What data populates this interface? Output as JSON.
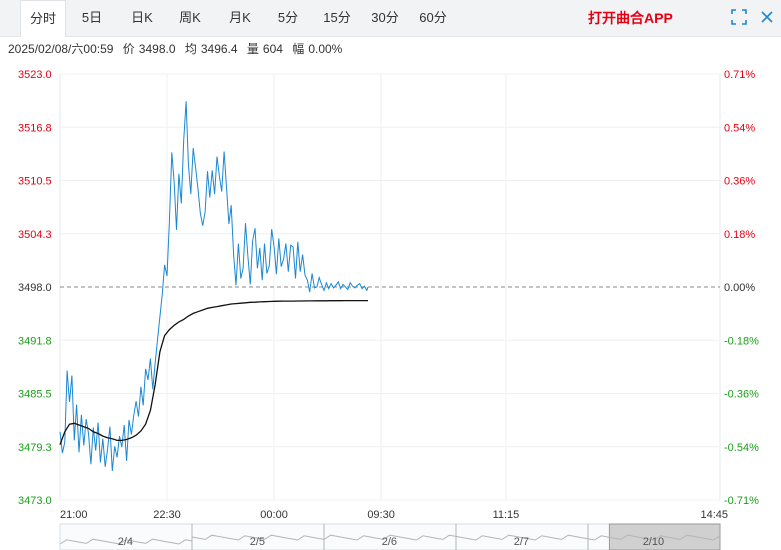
{
  "tabs": [
    {
      "label": "分时",
      "active": true
    },
    {
      "label": "5日"
    },
    {
      "label": "日K"
    },
    {
      "label": "周K"
    },
    {
      "label": "月K"
    },
    {
      "label": "5分"
    },
    {
      "label": "15分"
    },
    {
      "label": "30分"
    },
    {
      "label": "60分"
    }
  ],
  "app_link": "打开曲合APP",
  "info": {
    "datetime": "2025/02/08/六00:59",
    "price_label": "价",
    "price": "3498.0",
    "avg_label": "均",
    "avg": "3496.4",
    "vol_label": "量",
    "vol": "604",
    "chg_label": "幅",
    "chg": "0.00%"
  },
  "colors": {
    "up": "#e60012",
    "down": "#1aa01a",
    "price_line": "#1c87d2",
    "avg_line": "#111111",
    "ref_line": "#888888"
  },
  "chart_data": {
    "type": "line",
    "ylim": [
      3473.0,
      3523.0
    ],
    "ref_price": 3498.0,
    "y_ticks": [
      {
        "price": "3523.0",
        "pct": "0.71%",
        "dir": "up"
      },
      {
        "price": "3516.8",
        "pct": "0.54%",
        "dir": "up"
      },
      {
        "price": "3510.5",
        "pct": "0.36%",
        "dir": "up"
      },
      {
        "price": "3504.3",
        "pct": "0.18%",
        "dir": "up"
      },
      {
        "price": "3498.0",
        "pct": "0.00%",
        "dir": "flat"
      },
      {
        "price": "3491.8",
        "pct": "-0.18%",
        "dir": "down"
      },
      {
        "price": "3485.5",
        "pct": "-0.36%",
        "dir": "down"
      },
      {
        "price": "3479.3",
        "pct": "-0.54%",
        "dir": "down"
      },
      {
        "price": "3473.0",
        "pct": "-0.71%",
        "dir": "down"
      }
    ],
    "x_ticks": [
      "21:00",
      "22:30",
      "00:00",
      "09:30",
      "11:15",
      "14:45"
    ],
    "x_tick_minutes": [
      0,
      90,
      180,
      270,
      375,
      555
    ],
    "x_total_minutes": 555,
    "series": [
      {
        "key": "price",
        "x": [
          0,
          2,
          4,
          6,
          8,
          10,
          12,
          14,
          16,
          18,
          20,
          22,
          24,
          26,
          28,
          30,
          32,
          34,
          36,
          38,
          40,
          42,
          44,
          46,
          48,
          50,
          52,
          54,
          56,
          58,
          60,
          62,
          64,
          66,
          68,
          70,
          72,
          74,
          76,
          78,
          80,
          82,
          84,
          86,
          88,
          90,
          92,
          94,
          96,
          98,
          100,
          102,
          104,
          106,
          108,
          110,
          112,
          114,
          116,
          118,
          120,
          122,
          124,
          126,
          128,
          130,
          132,
          134,
          136,
          138,
          140,
          142,
          144,
          146,
          148,
          150,
          152,
          154,
          156,
          158,
          160,
          162,
          164,
          166,
          168,
          170,
          172,
          174,
          176,
          178,
          180,
          182,
          184,
          186,
          188,
          190,
          192,
          194,
          196,
          198,
          200,
          202,
          204,
          206,
          208,
          210,
          212,
          214,
          216,
          218,
          220,
          222,
          224,
          226,
          228,
          230,
          232,
          234,
          236,
          238,
          240,
          242,
          244,
          246,
          248,
          250,
          252,
          254,
          256,
          258,
          259
        ],
        "values": [
          3481.0,
          3478.5,
          3479.8,
          3488.2,
          3484.5,
          3487.6,
          3480.0,
          3484.2,
          3478.6,
          3483.0,
          3479.4,
          3482.5,
          3480.8,
          3477.2,
          3481.5,
          3478.8,
          3482.1,
          3477.4,
          3480.2,
          3476.9,
          3479.0,
          3481.6,
          3476.4,
          3479.3,
          3478.0,
          3480.5,
          3479.2,
          3481.8,
          3477.6,
          3482.4,
          3480.7,
          3482.9,
          3484.6,
          3482.8,
          3486.3,
          3484.1,
          3488.4,
          3487.1,
          3489.6,
          3486.0,
          3489.0,
          3491.8,
          3494.5,
          3497.2,
          3500.6,
          3499.3,
          3505.7,
          3513.8,
          3510.2,
          3504.7,
          3511.3,
          3507.8,
          3515.2,
          3519.8,
          3512.4,
          3508.9,
          3514.3,
          3512.0,
          3509.6,
          3506.7,
          3505.2,
          3506.8,
          3511.6,
          3508.5,
          3511.7,
          3508.9,
          3513.3,
          3511.0,
          3509.2,
          3513.9,
          3509.7,
          3505.4,
          3507.6,
          3501.8,
          3498.2,
          3503.1,
          3499.0,
          3500.2,
          3505.5,
          3501.6,
          3498.3,
          3503.4,
          3504.9,
          3500.2,
          3502.6,
          3498.8,
          3503.1,
          3499.6,
          3500.5,
          3504.8,
          3502.7,
          3499.5,
          3503.7,
          3500.4,
          3501.3,
          3503.1,
          3499.8,
          3502.9,
          3502.7,
          3499.0,
          3503.3,
          3499.8,
          3501.8,
          3499.4,
          3498.8,
          3497.4,
          3499.6,
          3497.9,
          3498.0,
          3499.1,
          3498.3,
          3497.6,
          3498.5,
          3497.8,
          3498.4,
          3497.9,
          3498.2,
          3498.6,
          3497.8,
          3498.3,
          3498.0,
          3497.7,
          3498.5,
          3498.1,
          3497.9,
          3498.2,
          3498.4,
          3497.8,
          3498.1,
          3497.6,
          3498.0
        ]
      },
      {
        "key": "avg",
        "x": [
          0,
          4,
          8,
          12,
          16,
          20,
          24,
          28,
          32,
          36,
          40,
          44,
          48,
          52,
          56,
          60,
          64,
          68,
          72,
          76,
          80,
          84,
          88,
          92,
          96,
          100,
          104,
          108,
          112,
          116,
          120,
          124,
          128,
          132,
          136,
          140,
          144,
          148,
          152,
          156,
          160,
          164,
          168,
          172,
          176,
          180,
          184,
          188,
          192,
          196,
          200,
          204,
          208,
          212,
          216,
          220,
          224,
          228,
          232,
          236,
          240,
          244,
          248,
          252,
          256,
          259
        ],
        "values": [
          3479.5,
          3481.0,
          3481.9,
          3482.0,
          3481.8,
          3481.6,
          3481.4,
          3481.0,
          3480.8,
          3480.5,
          3480.3,
          3480.2,
          3480.0,
          3480.0,
          3480.1,
          3480.3,
          3480.6,
          3481.1,
          3481.9,
          3483.5,
          3486.5,
          3490.4,
          3492.3,
          3493.0,
          3493.5,
          3493.9,
          3494.2,
          3494.6,
          3494.9,
          3495.1,
          3495.3,
          3495.5,
          3495.6,
          3495.7,
          3495.8,
          3495.9,
          3496.0,
          3496.05,
          3496.1,
          3496.15,
          3496.2,
          3496.22,
          3496.25,
          3496.28,
          3496.3,
          3496.32,
          3496.33,
          3496.34,
          3496.35,
          3496.35,
          3496.36,
          3496.36,
          3496.37,
          3496.37,
          3496.38,
          3496.38,
          3496.38,
          3496.39,
          3496.39,
          3496.39,
          3496.4,
          3496.4,
          3496.4,
          3496.4,
          3496.4,
          3496.4
        ]
      }
    ]
  },
  "nav": {
    "dates": [
      {
        "label": "2/4",
        "minute": 55
      },
      {
        "label": "2/5",
        "minute": 166
      },
      {
        "label": "2/6",
        "minute": 277
      },
      {
        "label": "2/7",
        "minute": 388
      },
      {
        "label": "2/10",
        "minute": 499
      }
    ],
    "window": [
      462,
      555
    ]
  }
}
